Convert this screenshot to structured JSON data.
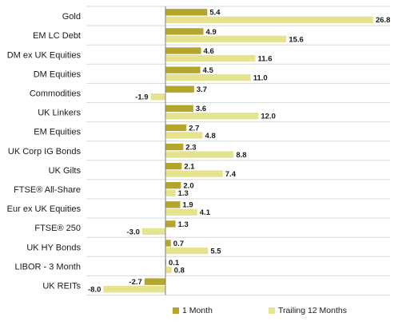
{
  "chart_data": {
    "type": "bar",
    "orientation": "horizontal",
    "categories": [
      "Gold",
      "EM LC Debt",
      "DM ex UK Equities",
      "DM Equities",
      "Commodities",
      "UK Linkers",
      "EM Equities",
      "UK Corp IG Bonds",
      "UK Gilts",
      "FTSE® All-Share",
      "Eur ex UK Equities",
      "FTSE® 250",
      "UK HY Bonds",
      "LIBOR - 3 Month",
      "UK REITs"
    ],
    "series": [
      {
        "name": "1 Month",
        "color": "#b3a62a",
        "values": [
          5.4,
          4.9,
          4.6,
          4.5,
          3.7,
          3.6,
          2.7,
          2.3,
          2.1,
          2.0,
          1.9,
          1.3,
          0.7,
          0.1,
          -2.7
        ]
      },
      {
        "name": "Trailing 12 Months",
        "color": "#e6e38f",
        "values": [
          26.8,
          15.6,
          11.6,
          11.0,
          -1.9,
          12.0,
          4.8,
          8.8,
          7.4,
          1.3,
          4.1,
          -3.0,
          5.5,
          0.8,
          -8.0
        ]
      }
    ],
    "value_labels": [
      [
        "5.4",
        "26.8"
      ],
      [
        "4.9",
        "15.6"
      ],
      [
        "4.6",
        "11.6"
      ],
      [
        "4.5",
        "11.0"
      ],
      [
        "3.7",
        "-1.9"
      ],
      [
        "3.6",
        "12.0"
      ],
      [
        "2.7",
        "4.8"
      ],
      [
        "2.3",
        "8.8"
      ],
      [
        "2.1",
        "7.4"
      ],
      [
        "2.0",
        "1.3"
      ],
      [
        "1.9",
        "4.1"
      ],
      [
        "1.3",
        "-3.0"
      ],
      [
        "0.7",
        "5.5"
      ],
      [
        "0.1",
        "0.8"
      ],
      [
        "-2.7",
        "-8.0"
      ]
    ],
    "xlim": [
      -8.5,
      28
    ],
    "grid": "horizontal separators between categories",
    "legend_position": "bottom"
  }
}
